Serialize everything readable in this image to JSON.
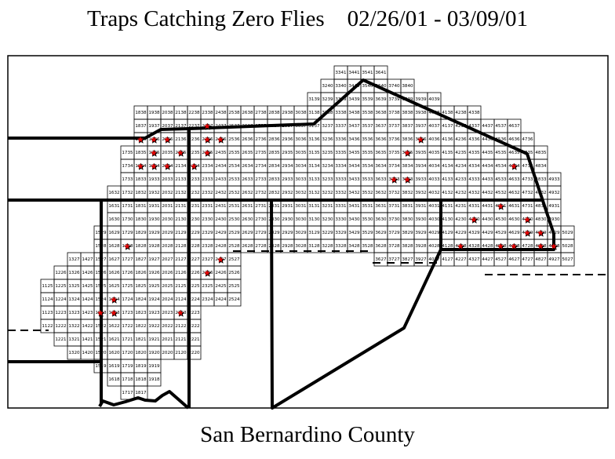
{
  "title": "Traps Catching Zero Flies    02/26/01 - 03/09/01",
  "footer": "San Bernardino County",
  "colors": {
    "star": "#e00000",
    "star_outline": "#000000",
    "grid": "#000000",
    "boundary": "#000000"
  },
  "marker_icon": "star-icon",
  "grid_rows": [
    {
      "row": 41,
      "cols": [
        [
          33,
          36
        ]
      ]
    },
    {
      "row": 40,
      "cols": [
        [
          32,
          38
        ]
      ]
    },
    {
      "row": 39,
      "cols": [
        [
          31,
          40
        ]
      ]
    },
    {
      "row": 38,
      "cols": [
        [
          18,
          43
        ]
      ]
    },
    {
      "row": 37,
      "cols": [
        [
          18,
          46
        ]
      ]
    },
    {
      "row": 36,
      "cols": [
        [
          18,
          47
        ]
      ]
    },
    {
      "row": 35,
      "cols": [
        [
          17,
          48
        ]
      ]
    },
    {
      "row": 34,
      "cols": [
        [
          17,
          48
        ]
      ]
    },
    {
      "row": 33,
      "cols": [
        [
          17,
          49
        ]
      ]
    },
    {
      "row": 32,
      "cols": [
        [
          16,
          49
        ]
      ]
    },
    {
      "row": 31,
      "cols": [
        [
          16,
          49
        ]
      ]
    },
    {
      "row": 30,
      "cols": [
        [
          16,
          49
        ]
      ]
    },
    {
      "row": 29,
      "cols": [
        [
          15,
          50
        ]
      ]
    },
    {
      "row": 28,
      "cols": [
        [
          15,
          50
        ]
      ]
    },
    {
      "row": 27,
      "cols": [
        [
          13,
          25
        ],
        [
          36,
          50
        ]
      ]
    },
    {
      "row": 26,
      "cols": [
        [
          12,
          25
        ]
      ]
    },
    {
      "row": 25,
      "cols": [
        [
          11,
          25
        ]
      ]
    },
    {
      "row": 24,
      "cols": [
        [
          11,
          25
        ]
      ]
    },
    {
      "row": 23,
      "cols": [
        [
          11,
          22
        ]
      ]
    },
    {
      "row": 22,
      "cols": [
        [
          11,
          22
        ]
      ]
    },
    {
      "row": 21,
      "cols": [
        [
          12,
          22
        ]
      ]
    },
    {
      "row": 20,
      "cols": [
        [
          13,
          22
        ]
      ]
    },
    {
      "row": 19,
      "cols": [
        [
          15,
          19
        ]
      ]
    },
    {
      "row": 18,
      "cols": [
        [
          16,
          19
        ]
      ]
    },
    {
      "row": 17,
      "cols": [
        [
          17,
          18
        ]
      ]
    }
  ],
  "zero_catch_traps": [
    "1836",
    "1936",
    "2036",
    "1935",
    "2135",
    "2337",
    "2336",
    "2436",
    "2335",
    "1834",
    "1934",
    "2034",
    "2234",
    "3936",
    "3835",
    "4634",
    "3733",
    "3833",
    "4531",
    "4330",
    "4730",
    "4729",
    "4829",
    "4228",
    "4528",
    "4628",
    "4828",
    "4928",
    "1728",
    "2326",
    "2427",
    "1624",
    "1523",
    "1623",
    "2123"
  ]
}
